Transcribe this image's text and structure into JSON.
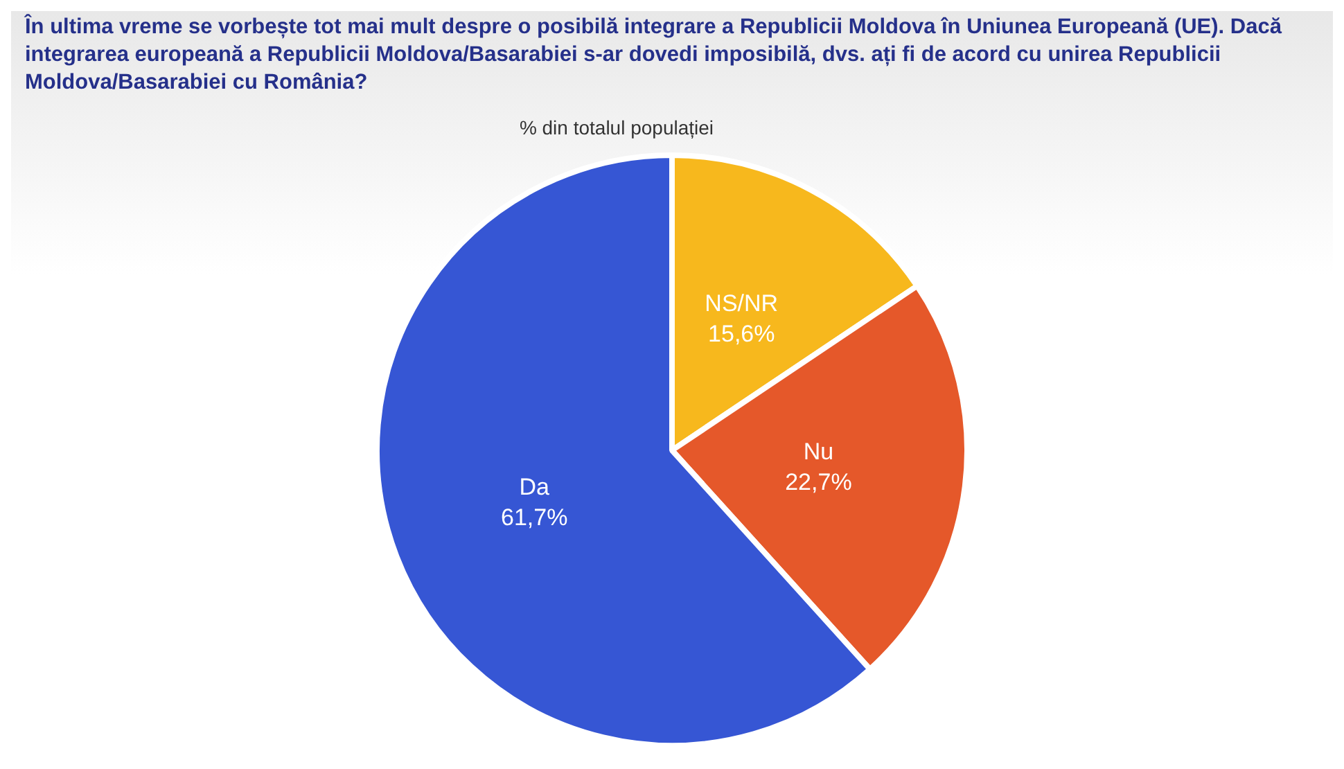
{
  "chart_data": {
    "type": "pie",
    "title": "În ultima vreme se vorbește tot mai mult despre o posibilă integrare a Republicii Moldova în Uniunea Europeană (UE). Dacă integrarea europeană a Republicii Moldova/Basarabiei s-ar dovedi imposibilă, dvs. ați fi de acord cu unirea Republicii Moldova/Basarabiei cu România?",
    "subtitle": "% din totalul populației",
    "categories": [
      "NS/NR",
      "Nu",
      "Da"
    ],
    "values": [
      15.6,
      22.7,
      61.7
    ],
    "value_labels": [
      "15,6%",
      "22,7%",
      "61,7%"
    ],
    "colors": [
      "#f7b81d",
      "#e5582a",
      "#3656d4"
    ],
    "legend": false
  }
}
